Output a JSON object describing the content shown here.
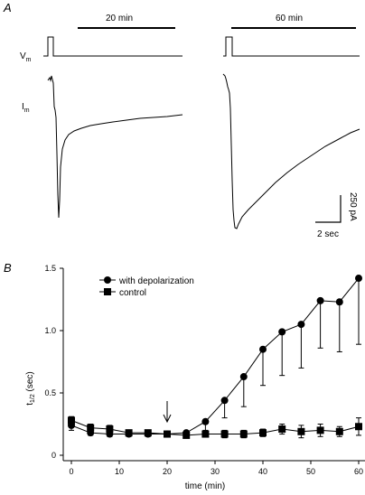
{
  "panel_a": {
    "label": "A",
    "protocol_left_label": "20 min",
    "protocol_right_label": "60 min",
    "vm_label": "V",
    "vm_sub": "m",
    "im_label": "I",
    "im_sub": "m",
    "scale_current": "250 pA",
    "scale_time": "2 sec"
  },
  "panel_b": {
    "label": "B"
  },
  "chart_data": {
    "type": "line",
    "xlabel": "time (min)",
    "ylabel": "t",
    "ylabel_sub": "1/2",
    "ylabel_unit": "(sec)",
    "xlim": [
      -2,
      61
    ],
    "ylim": [
      0,
      1.5
    ],
    "xticks": [
      0,
      10,
      20,
      30,
      40,
      50,
      60
    ],
    "yticks": [
      0,
      0.5,
      1.0,
      1.5
    ],
    "ytick_labels": [
      "0",
      "0.5",
      "1.0",
      "1.5"
    ],
    "annotation": "arrow at 20 min",
    "arrow_x": 20,
    "series": [
      {
        "name": "with depolarization",
        "marker": "circle",
        "x": [
          0,
          4,
          8,
          12,
          16,
          20,
          24,
          28,
          32,
          36,
          40,
          44,
          48,
          52,
          56,
          60
        ],
        "y": [
          0.24,
          0.18,
          0.17,
          0.17,
          0.17,
          0.17,
          0.18,
          0.27,
          0.44,
          0.63,
          0.85,
          0.99,
          1.05,
          1.24,
          1.23,
          1.42
        ],
        "err": [
          0.04,
          0.02,
          0.02,
          0.02,
          0.02,
          0.02,
          0.02,
          0.07,
          0.14,
          0.24,
          0.29,
          0.35,
          0.35,
          0.38,
          0.4,
          0.53
        ]
      },
      {
        "name": "control",
        "marker": "square",
        "x": [
          0,
          4,
          8,
          12,
          16,
          20,
          24,
          28,
          32,
          36,
          40,
          44,
          48,
          52,
          56,
          60
        ],
        "y": [
          0.28,
          0.22,
          0.21,
          0.18,
          0.18,
          0.17,
          0.16,
          0.17,
          0.17,
          0.17,
          0.18,
          0.21,
          0.19,
          0.2,
          0.19,
          0.23
        ],
        "err": [
          0.03,
          0.03,
          0.03,
          0.02,
          0.02,
          0.02,
          0.02,
          0.02,
          0.03,
          0.03,
          0.03,
          0.04,
          0.05,
          0.05,
          0.04,
          0.07
        ]
      }
    ]
  }
}
